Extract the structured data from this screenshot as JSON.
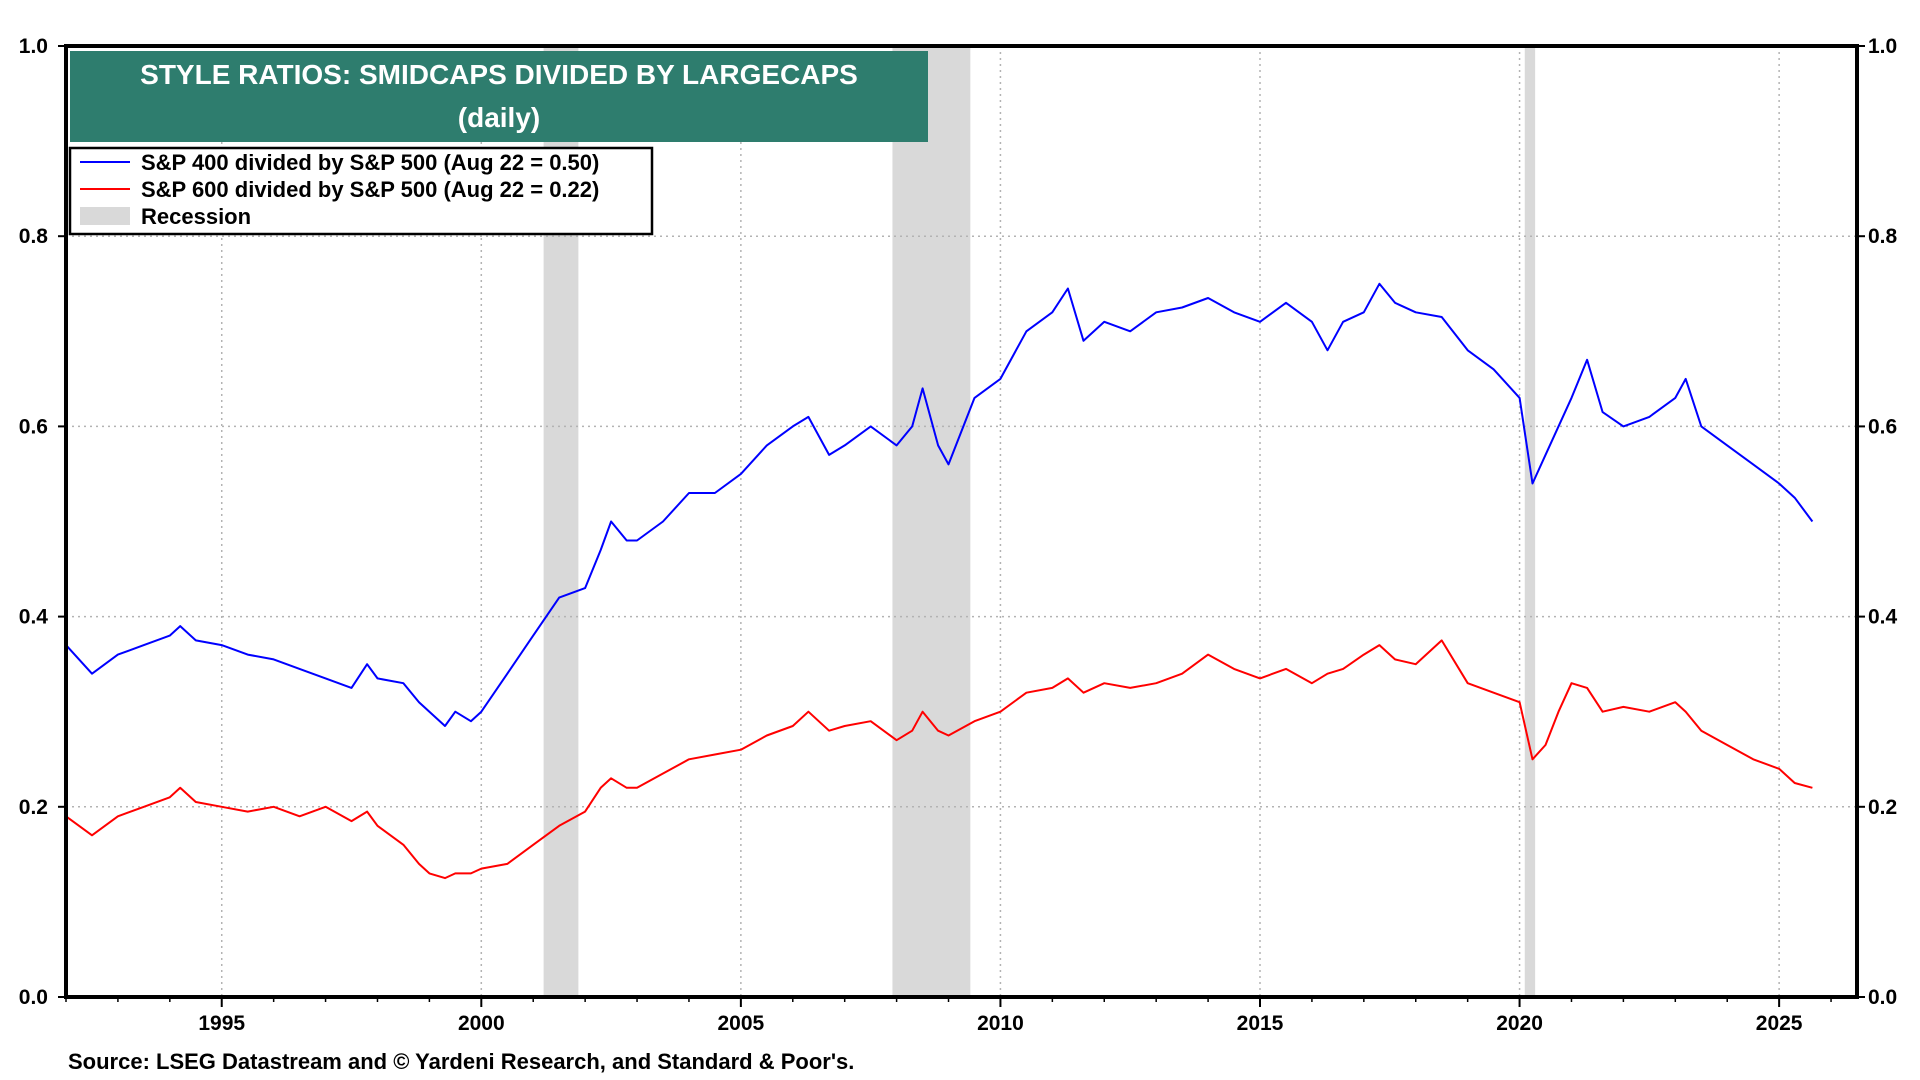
{
  "chart_data": {
    "type": "line",
    "title": "STYLE RATIOS: SMIDCAPS DIVIDED BY LARGECAPS",
    "subtitle": "(daily)",
    "source": "Source: LSEG Datastream and © Yardeni Research, and Standard & Poor's.",
    "xlim": [
      1992.0,
      2026.5
    ],
    "ylim": [
      0.0,
      1.0
    ],
    "x_ticks": [
      1995,
      2000,
      2005,
      2010,
      2015,
      2020,
      2025
    ],
    "x_tick_labels": [
      "1995",
      "2000",
      "2005",
      "2010",
      "2015",
      "2020",
      "2025"
    ],
    "y_ticks": [
      0.0,
      0.2,
      0.4,
      0.6,
      0.8,
      1.0
    ],
    "y_tick_labels": [
      "0.0",
      "0.2",
      "0.4",
      "0.6",
      "0.8",
      "1.0"
    ],
    "grid": true,
    "legend_position": "top-left",
    "legend_items": [
      {
        "label": "S&P 400 divided by S&P 500 (Aug 22 = 0.50)",
        "color": "#0000ff",
        "kind": "line"
      },
      {
        "label": "S&P 600 divided by S&P 500 (Aug 22 = 0.22)",
        "color": "#ff0000",
        "kind": "line"
      },
      {
        "label": "Recession",
        "color": "#d9d9d9",
        "kind": "box"
      }
    ],
    "recessions": [
      [
        2001.2,
        2001.87
      ],
      [
        2007.92,
        2009.42
      ],
      [
        2020.1,
        2020.3
      ]
    ],
    "series": [
      {
        "name": "S&P 400 divided by S&P 500 (Aug 22 = 0.50)",
        "color": "#0000ff",
        "x": [
          1992.0,
          1992.5,
          1993.0,
          1993.5,
          1994.0,
          1994.2,
          1994.5,
          1995.0,
          1995.5,
          1996.0,
          1996.5,
          1997.0,
          1997.5,
          1997.8,
          1998.0,
          1998.5,
          1998.8,
          1999.0,
          1999.3,
          1999.5,
          1999.8,
          2000.0,
          2000.5,
          2001.0,
          2001.5,
          2002.0,
          2002.3,
          2002.5,
          2002.8,
          2003.0,
          2003.5,
          2004.0,
          2004.5,
          2005.0,
          2005.5,
          2006.0,
          2006.3,
          2006.7,
          2007.0,
          2007.5,
          2008.0,
          2008.3,
          2008.5,
          2008.8,
          2009.0,
          2009.5,
          2010.0,
          2010.5,
          2011.0,
          2011.3,
          2011.6,
          2012.0,
          2012.5,
          2013.0,
          2013.5,
          2014.0,
          2014.5,
          2015.0,
          2015.5,
          2016.0,
          2016.3,
          2016.6,
          2017.0,
          2017.3,
          2017.6,
          2018.0,
          2018.5,
          2019.0,
          2019.5,
          2020.0,
          2020.25,
          2020.5,
          2020.75,
          2021.0,
          2021.3,
          2021.6,
          2022.0,
          2022.5,
          2023.0,
          2023.2,
          2023.5,
          2024.0,
          2024.5,
          2025.0,
          2025.3,
          2025.64
        ],
        "y": [
          0.37,
          0.34,
          0.36,
          0.37,
          0.38,
          0.39,
          0.375,
          0.37,
          0.36,
          0.355,
          0.345,
          0.335,
          0.325,
          0.35,
          0.335,
          0.33,
          0.31,
          0.3,
          0.285,
          0.3,
          0.29,
          0.3,
          0.34,
          0.38,
          0.42,
          0.43,
          0.47,
          0.5,
          0.48,
          0.48,
          0.5,
          0.53,
          0.53,
          0.55,
          0.58,
          0.6,
          0.61,
          0.57,
          0.58,
          0.6,
          0.58,
          0.6,
          0.64,
          0.58,
          0.56,
          0.63,
          0.65,
          0.7,
          0.72,
          0.745,
          0.69,
          0.71,
          0.7,
          0.72,
          0.725,
          0.735,
          0.72,
          0.71,
          0.73,
          0.71,
          0.68,
          0.71,
          0.72,
          0.75,
          0.73,
          0.72,
          0.715,
          0.68,
          0.66,
          0.63,
          0.54,
          0.57,
          0.6,
          0.63,
          0.67,
          0.615,
          0.6,
          0.61,
          0.63,
          0.65,
          0.6,
          0.58,
          0.56,
          0.54,
          0.525,
          0.5
        ]
      },
      {
        "name": "S&P 600 divided by S&P 500 (Aug 22 = 0.22)",
        "color": "#ff0000",
        "x": [
          1992.0,
          1992.5,
          1993.0,
          1993.5,
          1994.0,
          1994.2,
          1994.5,
          1995.0,
          1995.5,
          1996.0,
          1996.5,
          1997.0,
          1997.5,
          1997.8,
          1998.0,
          1998.5,
          1998.8,
          1999.0,
          1999.3,
          1999.5,
          1999.8,
          2000.0,
          2000.5,
          2001.0,
          2001.5,
          2002.0,
          2002.3,
          2002.5,
          2002.8,
          2003.0,
          2003.5,
          2004.0,
          2004.5,
          2005.0,
          2005.5,
          2006.0,
          2006.3,
          2006.7,
          2007.0,
          2007.5,
          2008.0,
          2008.3,
          2008.5,
          2008.8,
          2009.0,
          2009.5,
          2010.0,
          2010.5,
          2011.0,
          2011.3,
          2011.6,
          2012.0,
          2012.5,
          2013.0,
          2013.5,
          2014.0,
          2014.5,
          2015.0,
          2015.5,
          2016.0,
          2016.3,
          2016.6,
          2017.0,
          2017.3,
          2017.6,
          2018.0,
          2018.5,
          2019.0,
          2019.5,
          2020.0,
          2020.25,
          2020.5,
          2020.75,
          2021.0,
          2021.3,
          2021.6,
          2022.0,
          2022.5,
          2023.0,
          2023.2,
          2023.5,
          2024.0,
          2024.5,
          2025.0,
          2025.3,
          2025.64
        ],
        "y": [
          0.19,
          0.17,
          0.19,
          0.2,
          0.21,
          0.22,
          0.205,
          0.2,
          0.195,
          0.2,
          0.19,
          0.2,
          0.185,
          0.195,
          0.18,
          0.16,
          0.14,
          0.13,
          0.125,
          0.13,
          0.13,
          0.135,
          0.14,
          0.16,
          0.18,
          0.195,
          0.22,
          0.23,
          0.22,
          0.22,
          0.235,
          0.25,
          0.255,
          0.26,
          0.275,
          0.285,
          0.3,
          0.28,
          0.285,
          0.29,
          0.27,
          0.28,
          0.3,
          0.28,
          0.275,
          0.29,
          0.3,
          0.32,
          0.325,
          0.335,
          0.32,
          0.33,
          0.325,
          0.33,
          0.34,
          0.36,
          0.345,
          0.335,
          0.345,
          0.33,
          0.34,
          0.345,
          0.36,
          0.37,
          0.355,
          0.35,
          0.375,
          0.33,
          0.32,
          0.31,
          0.25,
          0.265,
          0.3,
          0.33,
          0.325,
          0.3,
          0.305,
          0.3,
          0.31,
          0.3,
          0.28,
          0.265,
          0.25,
          0.24,
          0.225,
          0.22
        ]
      }
    ]
  }
}
